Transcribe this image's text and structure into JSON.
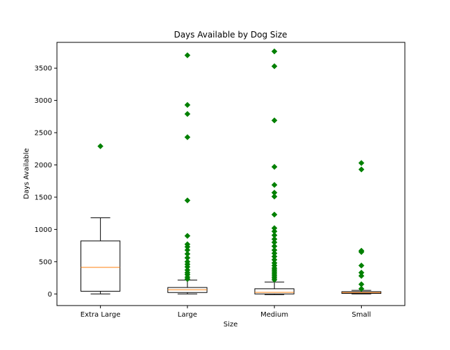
{
  "chart_data": {
    "type": "box",
    "title": "Days Available by Dog Size",
    "xlabel": "Size",
    "ylabel": "Days Available",
    "ylim": [
      -180,
      3900
    ],
    "yticks": [
      0,
      500,
      1000,
      1500,
      2000,
      2500,
      3000,
      3500
    ],
    "grid": false,
    "colors": {
      "box": "#000000",
      "median": "#ff7f0e",
      "outlier": "#008000"
    },
    "categories": [
      "Extra Large",
      "Large",
      "Medium",
      "Small"
    ],
    "boxes": [
      {
        "name": "Extra Large",
        "whisker_low": 0,
        "q1": 42,
        "median": 412,
        "q3": 822,
        "whisker_high": 1180,
        "outliers": [
          2290
        ]
      },
      {
        "name": "Large",
        "whisker_low": 0,
        "q1": 22,
        "median": 65,
        "q3": 100,
        "whisker_high": 215,
        "outliers": [
          230,
          260,
          300,
          330,
          370,
          420,
          460,
          500,
          560,
          620,
          680,
          730,
          770,
          900,
          1450,
          2430,
          2790,
          2930,
          3700
        ]
      },
      {
        "name": "Medium",
        "whisker_low": -10,
        "q1": 0,
        "median": 25,
        "q3": 80,
        "whisker_high": 185,
        "outliers": [
          220,
          250,
          280,
          310,
          340,
          370,
          400,
          440,
          480,
          530,
          580,
          630,
          680,
          740,
          800,
          850,
          910,
          970,
          1020,
          1230,
          1510,
          1570,
          1690,
          1970,
          2690,
          3530,
          3760
        ]
      },
      {
        "name": "Small",
        "whisker_low": 0,
        "q1": 8,
        "median": 22,
        "q3": 35,
        "whisker_high": 55,
        "outliers": [
          80,
          150,
          280,
          330,
          440,
          650,
          670,
          1930,
          2030
        ]
      }
    ]
  }
}
